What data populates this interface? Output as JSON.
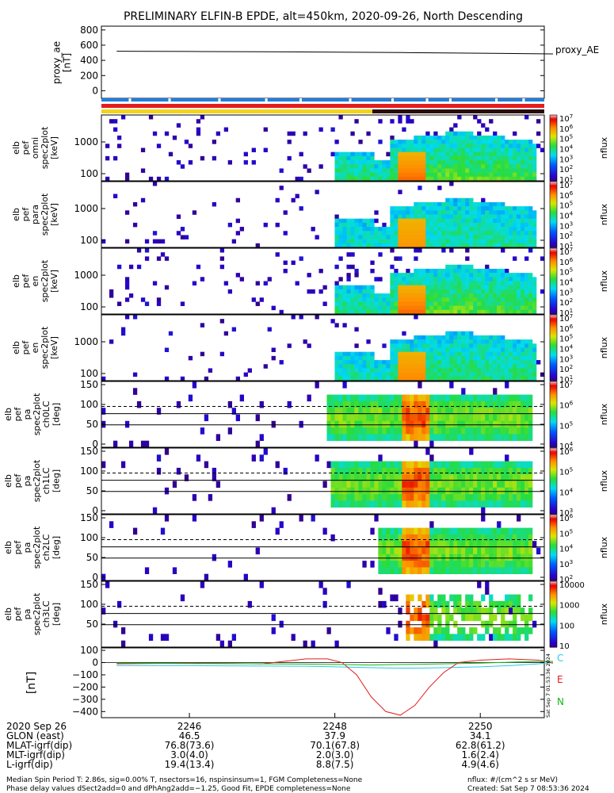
{
  "title": "PRELIMINARY ELFIN-B EPDE, alt=450km, 2020-09-26, North Descending",
  "colors": {
    "fg": "#000000",
    "bar_blue": "#1f7fe0",
    "bar_red": "#e41c1c",
    "bar_yellow": "#f3d31a",
    "bar_dark": "#2b0a0a",
    "comp_c": "#27c9e6",
    "comp_e": "#e11c1c",
    "comp_n": "#14b814"
  },
  "chart_data": [
    {
      "type": "line",
      "ylabel": "proxy_ae\n[nT]",
      "yticks": [
        "800",
        "600",
        "400",
        "200",
        "0"
      ],
      "ylim": [
        -100,
        850
      ],
      "legend": "proxy_AE",
      "series": [
        {
          "name": "proxy_AE",
          "x": [
            2245.0,
            2246.0,
            2247.0,
            2248.0,
            2249.0,
            2250.0,
            2251.0
          ],
          "y": [
            520,
            517,
            513,
            508,
            502,
            494,
            485
          ]
        }
      ]
    },
    {
      "type": "heatmap",
      "ylabel": "elb\npef\nomni\nspec2plot\n[keV]",
      "yticks": [
        "1000",
        "100"
      ],
      "zlabel": "nflux",
      "zticks": [
        "10^7",
        "10^6",
        "10^5",
        "10^4",
        "10^3",
        "10^2",
        "10^1"
      ]
    },
    {
      "type": "heatmap",
      "ylabel": "elb\npef\npara\nspec2plot\n[keV]",
      "yticks": [
        "1000",
        "100"
      ],
      "zlabel": "nflux",
      "zticks": [
        "10^7",
        "10^6",
        "10^5",
        "10^4",
        "10^3",
        "10^2",
        "10^1"
      ]
    },
    {
      "type": "heatmap",
      "ylabel": "elb\npef\nen\nspec2plot\n[keV]",
      "yticks": [
        "1000",
        "100"
      ],
      "zlabel": "nflux",
      "zticks": [
        "10^7",
        "10^6",
        "10^5",
        "10^4",
        "10^3",
        "10^2",
        "10^1"
      ]
    },
    {
      "type": "heatmap",
      "ylabel": "elb\npef\nen\nspec2plot\n[keV]",
      "yticks": [
        "1000",
        "100"
      ],
      "zlabel": "nflux",
      "zticks": [
        "10^7",
        "10^6",
        "10^5",
        "10^4",
        "10^3",
        "10^2",
        "10^1"
      ]
    },
    {
      "type": "heatmap",
      "ylabel": "elb\npef\npa\nspec2plot\nch0LC\n[deg]",
      "yticks": [
        "150",
        "100",
        "50",
        "0"
      ],
      "zlabel": "nflux",
      "zticks": [
        "10^7",
        "10^6",
        "10^5",
        "10^4"
      ]
    },
    {
      "type": "heatmap",
      "ylabel": "elb\npef\npa\nspec2plot\nch1LC\n[deg]",
      "yticks": [
        "150",
        "100",
        "50",
        "0"
      ],
      "zlabel": "nflux",
      "zticks": [
        "10^6",
        "10^5",
        "10^4",
        "10^3"
      ]
    },
    {
      "type": "heatmap",
      "ylabel": "elb\npef\npa\nspec2plot\nch2LC\n[deg]",
      "yticks": [
        "150",
        "100",
        "50",
        "0"
      ],
      "zlabel": "nflux",
      "zticks": [
        "10^6",
        "10^5",
        "10^4",
        "10^3",
        "10^2"
      ]
    },
    {
      "type": "heatmap",
      "ylabel": "elb\npef\npa\nspec2plot\nch3LC\n[deg]",
      "yticks": [
        "150",
        "100",
        "50"
      ],
      "zlabel": "nflux",
      "zticks": [
        "10000",
        "1000",
        "100",
        "10"
      ]
    },
    {
      "type": "line",
      "ylabel": "[nT]",
      "yticks": [
        "100",
        "0",
        "−100",
        "−200",
        "−300",
        "−400"
      ],
      "ylim": [
        -450,
        120
      ],
      "legend_labels": [
        "C",
        "E",
        "N"
      ],
      "series": [
        {
          "name": "C",
          "x": [
            2245.0,
            2246.0,
            2247.0,
            2247.6,
            2248.0,
            2248.4,
            2248.8,
            2249.2,
            2249.6,
            2250.0,
            2250.4,
            2250.8,
            2251.0
          ],
          "y": [
            -25,
            -25,
            -28,
            -30,
            -35,
            -40,
            -45,
            -45,
            -40,
            -35,
            -25,
            -10,
            0
          ]
        },
        {
          "name": "E",
          "x": [
            2245.0,
            2246.0,
            2247.0,
            2247.3,
            2247.6,
            2247.9,
            2248.1,
            2248.3,
            2248.5,
            2248.7,
            2248.9,
            2249.1,
            2249.3,
            2249.5,
            2249.7,
            2250.0,
            2250.4,
            2250.8,
            2251.0
          ],
          "y": [
            -10,
            -5,
            -10,
            10,
            30,
            30,
            0,
            -100,
            -280,
            -400,
            -430,
            -350,
            -200,
            -80,
            0,
            20,
            30,
            20,
            -5
          ]
        },
        {
          "name": "N",
          "x": [
            2245.0,
            2246.0,
            2247.0,
            2247.5,
            2248.0,
            2248.5,
            2249.0,
            2249.5,
            2250.0,
            2250.5,
            2251.0
          ],
          "y": [
            -5,
            -8,
            -10,
            -12,
            -15,
            -20,
            -15,
            -10,
            -5,
            5,
            10
          ]
        }
      ]
    }
  ],
  "xaxis": {
    "row_labels": [
      "2020 Sep 26",
      "GLON (east)",
      "MLAT-igrf(dip)",
      "MLT-igrf(dip)",
      "L-igrf(dip)"
    ],
    "columns": [
      {
        "t": 2246,
        "label": "2246",
        "vals": [
          "46.5",
          "76.8(73.6)",
          "3.0(4.0)",
          "19.4(13.4)"
        ]
      },
      {
        "t": 2248,
        "label": "2248",
        "vals": [
          "37.9",
          "70.1(67.8)",
          "2.0(3.0)",
          "8.8(7.5)"
        ]
      },
      {
        "t": 2250,
        "label": "2250",
        "vals": [
          "34.1",
          "62.8(61.2)",
          "1.6(2.4)",
          "4.9(4.6)"
        ]
      }
    ]
  },
  "footer": {
    "line1": "Median Spin Period T: 2.86s, sig=0.00% T, nsectors=16, nspinsinsum=1, FGM Completeness=None",
    "line2": "Phase delay values dSect2add=0 and dPhAng2add=−1.25, Good Fit, EPDE completeness=None",
    "units": "nflux: #/(cm^2 s sr MeV)",
    "created": "Created: Sat Sep  7 08:53:36 2024",
    "side_stamp": "Sat Sep  7 01:53:36 2024"
  }
}
